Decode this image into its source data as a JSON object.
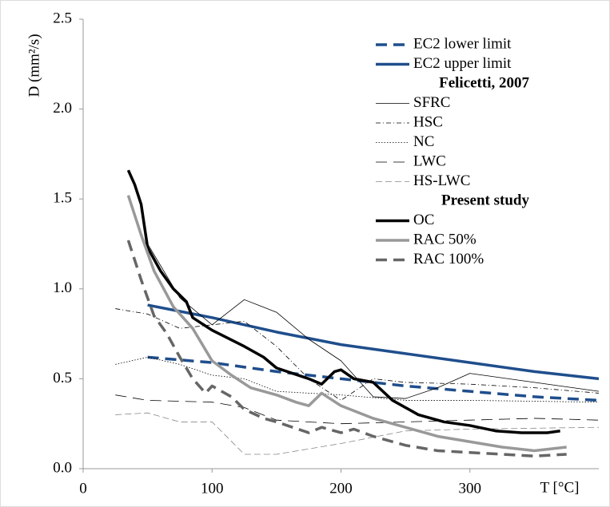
{
  "chart_data": {
    "type": "line",
    "xlabel": "T [°C]",
    "ylabel": "D (mm²/s)",
    "xlim": [
      0,
      400
    ],
    "xticks": [
      0,
      100,
      200,
      300
    ],
    "ylim": [
      0,
      2.5
    ],
    "yticks": [
      {
        "value": 0,
        "label": "0.0"
      },
      0.5,
      {
        "value": 1,
        "label": "1.0"
      },
      1.5,
      {
        "value": 2,
        "label": "2.0"
      },
      2.5
    ],
    "series_groups": [
      {
        "series": [
          {
            "name": "EC2 lower limit",
            "color": "#1f4e8c",
            "width": 3.5,
            "dash": "dashed",
            "x": [
              50,
              100,
              150,
              200,
              250,
              300,
              350,
              400
            ],
            "values": [
              0.62,
              0.59,
              0.54,
              0.5,
              0.46,
              0.43,
              0.4,
              0.38
            ]
          },
          {
            "name": "EC2 upper limit",
            "color": "#1f4e8c",
            "width": 3.5,
            "dash": "solid",
            "x": [
              50,
              100,
              150,
              200,
              250,
              300,
              350,
              400
            ],
            "values": [
              0.91,
              0.84,
              0.76,
              0.69,
              0.64,
              0.59,
              0.54,
              0.5
            ]
          }
        ]
      },
      {
        "title": "Felicetti, 2007",
        "series": [
          {
            "name": "SFRC",
            "color": "#000000",
            "width": 0.8,
            "dash": "solid",
            "x": [
              50,
              75,
              100,
              125,
              150,
              175,
              200,
              225,
              250,
              275,
              300,
              350,
              400
            ],
            "values": [
              1.25,
              0.95,
              0.8,
              0.94,
              0.87,
              0.72,
              0.6,
              0.4,
              0.39,
              0.45,
              0.53,
              0.48,
              0.43
            ]
          },
          {
            "name": "HSC",
            "color": "#000000",
            "width": 0.8,
            "dash": "dashdot",
            "x": [
              25,
              50,
              75,
              100,
              125,
              150,
              175,
              200,
              225,
              250,
              300,
              350,
              400
            ],
            "values": [
              0.89,
              0.86,
              0.78,
              0.8,
              0.82,
              0.68,
              0.5,
              0.38,
              0.5,
              0.48,
              0.47,
              0.45,
              0.42
            ]
          },
          {
            "name": "NC",
            "color": "#000000",
            "width": 0.8,
            "dash": "dotted",
            "x": [
              25,
              50,
              75,
              100,
              125,
              150,
              200,
              250,
              300,
              400
            ],
            "values": [
              0.58,
              0.62,
              0.58,
              0.52,
              0.5,
              0.43,
              0.41,
              0.38,
              0.38,
              0.37
            ]
          },
          {
            "name": "LWC",
            "color": "#000000",
            "width": 0.8,
            "dash": "dashed",
            "x": [
              25,
              50,
              100,
              125,
              150,
              200,
              250,
              300,
              350,
              400
            ],
            "values": [
              0.41,
              0.38,
              0.37,
              0.34,
              0.27,
              0.25,
              0.26,
              0.27,
              0.28,
              0.27
            ]
          },
          {
            "name": "HS-LWC",
            "color": "#888888",
            "width": 0.8,
            "dash": "longdash",
            "x": [
              25,
              50,
              75,
              100,
              125,
              150,
              200,
              250,
              300,
              400
            ],
            "values": [
              0.3,
              0.31,
              0.26,
              0.26,
              0.08,
              0.08,
              0.14,
              0.21,
              0.22,
              0.23
            ]
          }
        ]
      },
      {
        "title": "Present study",
        "series": [
          {
            "name": "OC",
            "color": "#000000",
            "width": 3.5,
            "dash": "solid",
            "x": [
              35,
              40,
              45,
              50,
              60,
              70,
              80,
              85,
              100,
              125,
              140,
              150,
              175,
              185,
              195,
              200,
              210,
              225,
              240,
              260,
              280,
              300,
              320,
              340,
              360,
              370
            ],
            "values": [
              1.66,
              1.58,
              1.47,
              1.23,
              1.1,
              1.0,
              0.93,
              0.84,
              0.77,
              0.68,
              0.62,
              0.56,
              0.5,
              0.47,
              0.54,
              0.55,
              0.5,
              0.48,
              0.38,
              0.3,
              0.26,
              0.24,
              0.21,
              0.2,
              0.2,
              0.21
            ]
          },
          {
            "name": "RAC 50%",
            "color": "#999999",
            "width": 3.5,
            "dash": "solid",
            "x": [
              35,
              45,
              55,
              70,
              85,
              100,
              115,
              130,
              150,
              165,
              175,
              185,
              200,
              225,
              250,
              275,
              300,
              325,
              350,
              375
            ],
            "values": [
              1.52,
              1.3,
              1.1,
              0.9,
              0.78,
              0.6,
              0.52,
              0.45,
              0.41,
              0.37,
              0.35,
              0.42,
              0.35,
              0.28,
              0.23,
              0.18,
              0.15,
              0.12,
              0.1,
              0.12
            ]
          },
          {
            "name": "RAC 100%",
            "color": "#666666",
            "width": 3.5,
            "dash": "dashed",
            "x": [
              35,
              45,
              55,
              65,
              75,
              85,
              95,
              100,
              115,
              125,
              140,
              150,
              175,
              185,
              200,
              210,
              225,
              250,
              275,
              300,
              325,
              350,
              375
            ],
            "values": [
              1.27,
              1.05,
              0.85,
              0.75,
              0.62,
              0.5,
              0.42,
              0.46,
              0.4,
              0.33,
              0.28,
              0.26,
              0.2,
              0.23,
              0.2,
              0.22,
              0.18,
              0.13,
              0.1,
              0.09,
              0.08,
              0.07,
              0.08
            ]
          }
        ]
      }
    ]
  }
}
